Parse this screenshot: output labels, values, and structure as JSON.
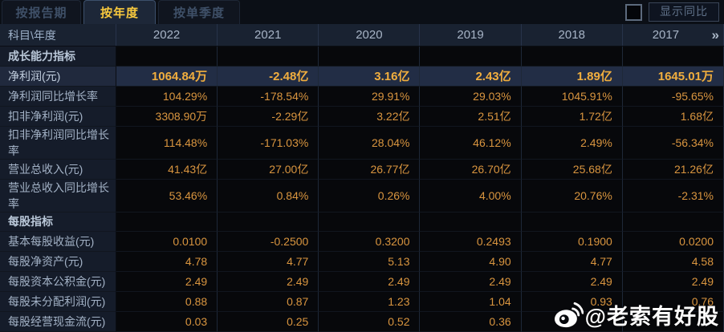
{
  "tabs": [
    {
      "label": "按报告期",
      "active": false
    },
    {
      "label": "按年度",
      "active": true
    },
    {
      "label": "按单季度",
      "active": false
    }
  ],
  "controls": {
    "show_yoy_label": "显示同比",
    "checkbox_checked": false
  },
  "table": {
    "corner_header": "科目\\年度",
    "years": [
      "2022",
      "2021",
      "2020",
      "2019",
      "2018",
      "2017"
    ],
    "more_label": "»",
    "rows": [
      {
        "type": "section",
        "label": "成长能力指标"
      },
      {
        "type": "data",
        "highlight": true,
        "label": "净利润(元)",
        "values": [
          "1064.84万",
          "-2.48亿",
          "3.16亿",
          "2.43亿",
          "1.89亿",
          "1645.01万"
        ]
      },
      {
        "type": "data",
        "highlight": false,
        "label": "净利润同比增长率",
        "values": [
          "104.29%",
          "-178.54%",
          "29.91%",
          "29.03%",
          "1045.91%",
          "-95.65%"
        ]
      },
      {
        "type": "data",
        "highlight": false,
        "label": "扣非净利润(元)",
        "values": [
          "3308.90万",
          "-2.29亿",
          "3.22亿",
          "2.51亿",
          "1.72亿",
          "1.68亿"
        ]
      },
      {
        "type": "data",
        "highlight": false,
        "label": "扣非净利润同比增长率",
        "values": [
          "114.48%",
          "-171.03%",
          "28.04%",
          "46.12%",
          "2.49%",
          "-56.34%"
        ]
      },
      {
        "type": "data",
        "highlight": false,
        "label": "营业总收入(元)",
        "values": [
          "41.43亿",
          "27.00亿",
          "26.77亿",
          "26.70亿",
          "25.68亿",
          "21.26亿"
        ]
      },
      {
        "type": "data",
        "highlight": false,
        "label": "营业总收入同比增长率",
        "values": [
          "53.46%",
          "0.84%",
          "0.26%",
          "4.00%",
          "20.76%",
          "-2.31%"
        ]
      },
      {
        "type": "section",
        "label": "每股指标"
      },
      {
        "type": "data",
        "highlight": false,
        "label": "基本每股收益(元)",
        "values": [
          "0.0100",
          "-0.2500",
          "0.3200",
          "0.2493",
          "0.1900",
          "0.0200"
        ]
      },
      {
        "type": "data",
        "highlight": false,
        "label": "每股净资产(元)",
        "values": [
          "4.78",
          "4.77",
          "5.13",
          "4.90",
          "4.77",
          "4.58"
        ]
      },
      {
        "type": "data",
        "highlight": false,
        "label": "每股资本公积金(元)",
        "values": [
          "2.49",
          "2.49",
          "2.49",
          "2.49",
          "2.49",
          "2.49"
        ]
      },
      {
        "type": "data",
        "highlight": false,
        "label": "每股未分配利润(元)",
        "values": [
          "0.88",
          "0.87",
          "1.23",
          "1.04",
          "0.93",
          "0.76"
        ]
      },
      {
        "type": "data",
        "highlight": false,
        "label": "每股经营现金流(元)",
        "values": [
          "0.03",
          "0.25",
          "0.52",
          "0.36",
          "",
          ""
        ]
      }
    ]
  },
  "watermark": {
    "icon": "weibo-icon",
    "handle": "@老索有好股"
  },
  "colors": {
    "accent_value": "#d9953f",
    "highlight_value": "#f1ae3e",
    "active_tab_text": "#f8c93e",
    "highlight_row_bg": "#222d45",
    "header_bg": "#192231",
    "label_col_bg": "#151c2a"
  }
}
